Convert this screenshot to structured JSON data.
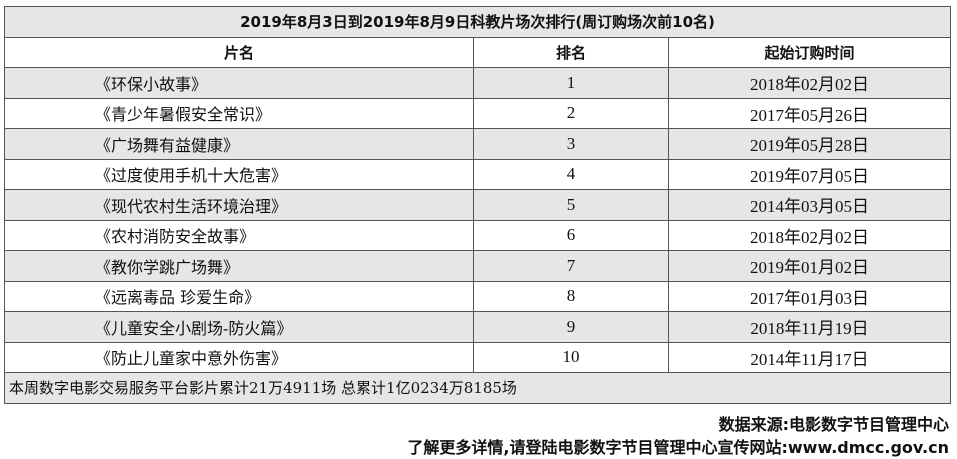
{
  "table": {
    "title": "2019年8月3日到2019年8月9日科教片场次排行(周订购场次前10名)",
    "header": [
      "片名",
      "排名",
      "起始订购时间"
    ],
    "rows": [
      [
        "《环保小故事》",
        1,
        "2018年02月02日"
      ],
      [
        "《青少年暑假安全常识》",
        2,
        "2017年05月26日"
      ],
      [
        "《广场舞有益健康》",
        3,
        "2019年05月28日"
      ],
      [
        "《过度使用手机十大危害》",
        4,
        "2019年07月05日"
      ],
      [
        "《现代农村生活环境治理》",
        5,
        "2014年03月05日"
      ],
      [
        "《农村消防安全故事》",
        6,
        "2018年02月02日"
      ],
      [
        "《教你学跳广场舞》",
        7,
        "2019年01月02日"
      ],
      [
        "《远离毒品 珍爱生命》",
        8,
        "2017年01月03日"
      ],
      [
        "《儿童安全小剧场-防火篇》",
        9,
        "2018年11月19日"
      ],
      [
        "《防止儿童家中意外伤害》",
        10,
        "2014年11月17日"
      ]
    ],
    "footer": "本周数字电影交易服务平台影片累计21万4911场  总累计1亿0234万8185场"
  },
  "source": "数据来源:电影数字节目管理中心",
  "more_info": "了解更多详情,请登陆电影数字节目管理中心宣传网站:www.dmcc.gov.cn"
}
